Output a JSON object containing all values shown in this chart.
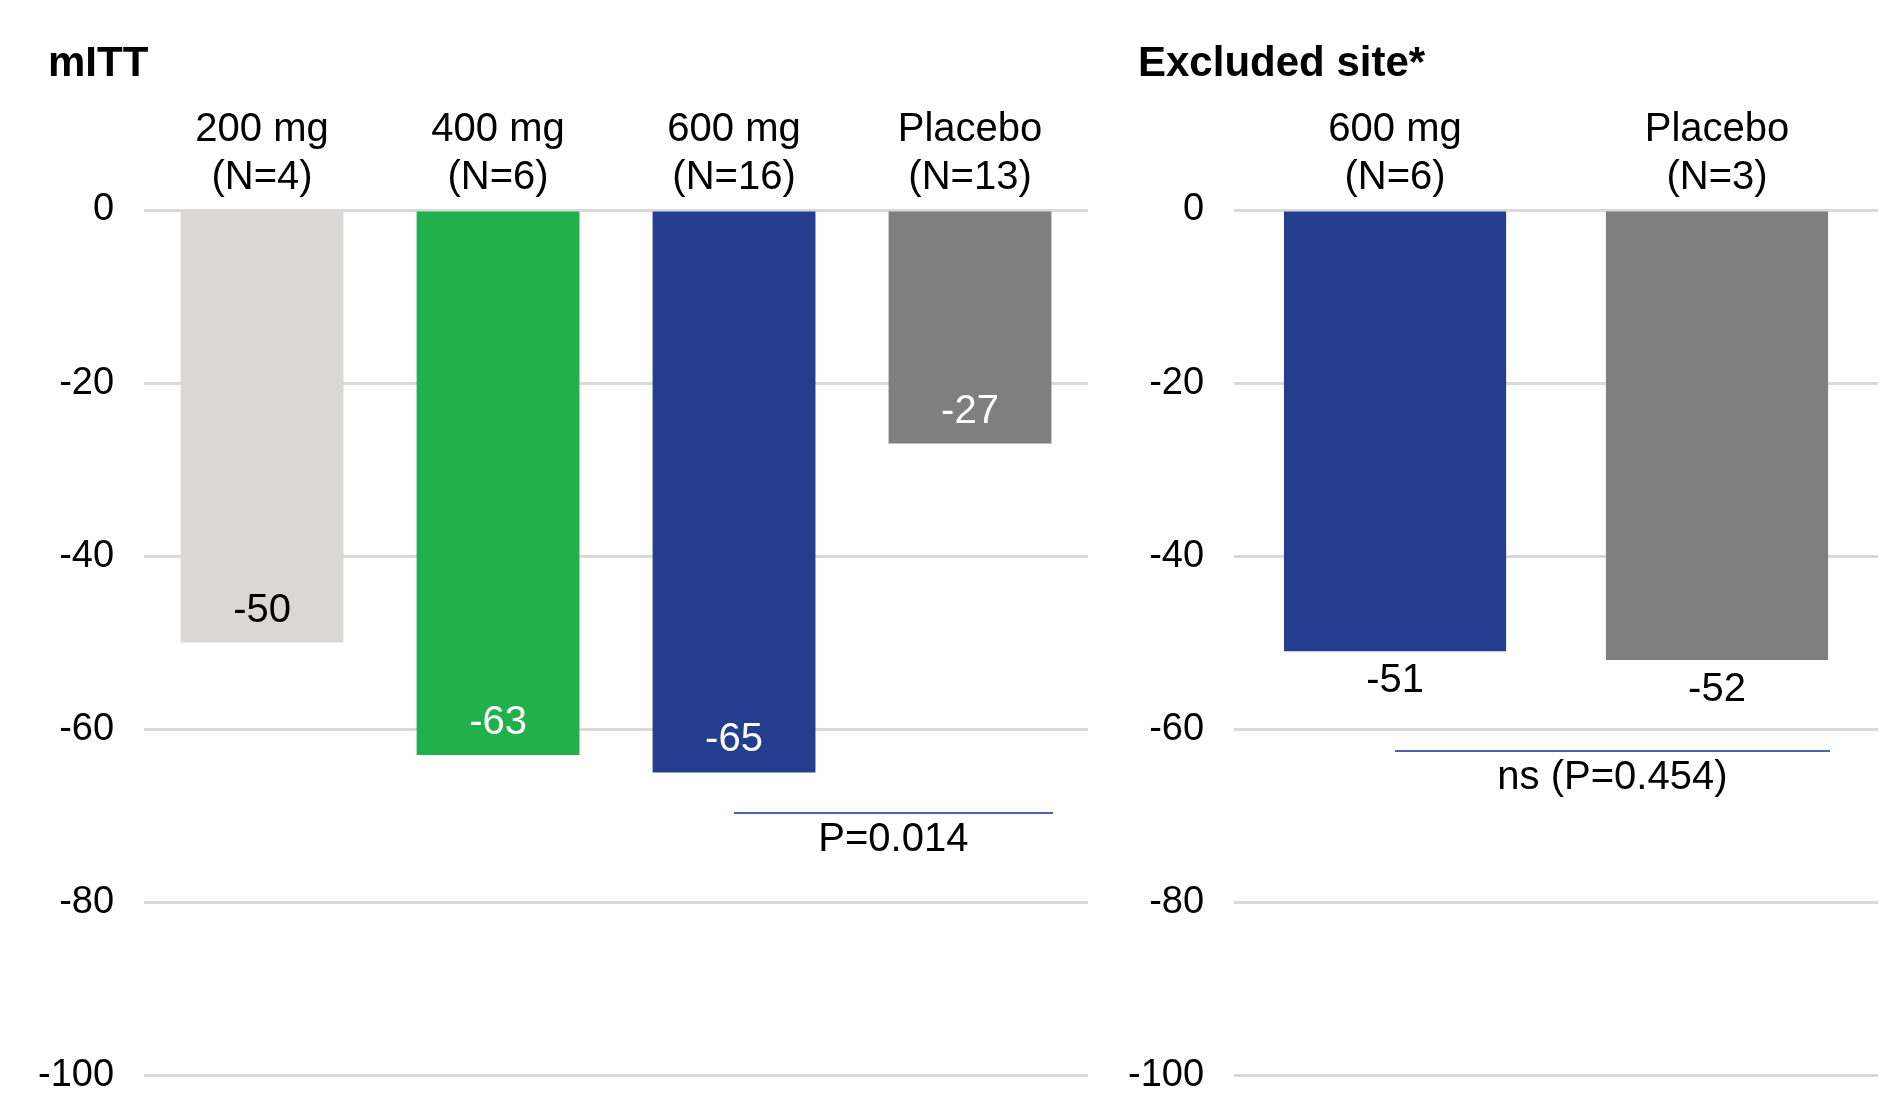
{
  "chart_data": [
    {
      "type": "bar",
      "title": "mITT",
      "categories": [
        "200 mg (N=4)",
        "400 mg (N=6)",
        "600 mg (N=16)",
        "Placebo (N=13)"
      ],
      "values": [
        -50,
        -63,
        -65,
        -27
      ],
      "colors": [
        "#d9d8d6",
        "#21b04b",
        "#243e8f",
        "#7f7f7f"
      ],
      "ylim": [
        -100,
        0
      ],
      "yticks": [
        -100,
        -80,
        -60,
        -40,
        -20,
        0
      ],
      "grid": "y",
      "data_labels": true,
      "annotations": [
        "P=0.014"
      ]
    },
    {
      "type": "bar",
      "title": "Excluded site*",
      "categories": [
        "600 mg (N=6)",
        "Placebo (N=3)"
      ],
      "values": [
        -51,
        -52
      ],
      "colors": [
        "#243e8f",
        "#7f7f7f"
      ],
      "ylim": [
        -100,
        0
      ],
      "yticks": [
        -100,
        -80,
        -60,
        -40,
        -20,
        0
      ],
      "grid": "y",
      "data_labels": true,
      "annotations": [
        "ns (P=0.454)"
      ]
    }
  ]
}
